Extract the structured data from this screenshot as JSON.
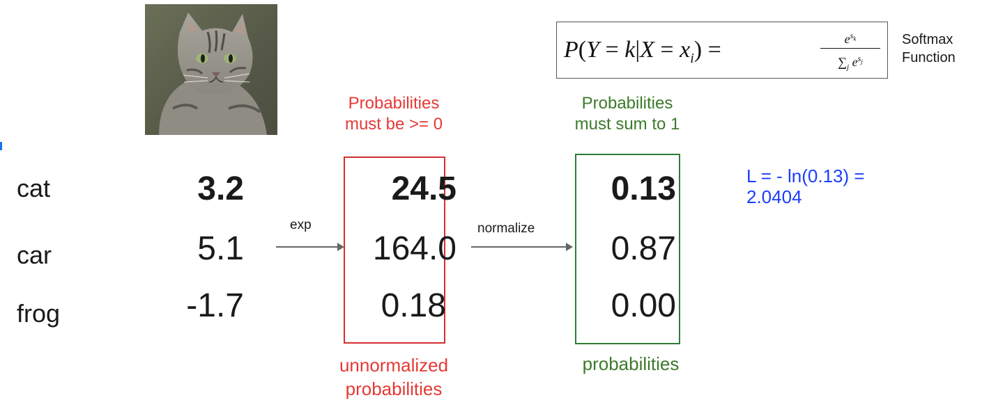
{
  "classes": [
    "cat",
    "car",
    "frog"
  ],
  "scores": [
    "3.2",
    "5.1",
    "-1.7"
  ],
  "unnormalized": [
    "24.5",
    "164.0",
    "0.18"
  ],
  "probabilities": [
    "0.13",
    "0.87",
    "0.00"
  ],
  "captions": {
    "top_red_1": "Probabilities",
    "top_red_2": "must be >= 0",
    "top_green_1": "Probabilities",
    "top_green_2": "must sum to 1",
    "bottom_red_1": "unnormalized",
    "bottom_red_2": "probabilities",
    "bottom_green": "probabilities"
  },
  "arrows": {
    "exp": "exp",
    "normalize": "normalize"
  },
  "loss": {
    "line1": "L = - ln(0.13) =",
    "line2": "2.0404"
  },
  "formula": {
    "label_1": "Softmax",
    "label_2": "Function"
  },
  "colors": {
    "red": "#e53935",
    "green": "#3d7a2a",
    "blue": "#1a3dff"
  },
  "image": {
    "subject": "cat-photo"
  }
}
